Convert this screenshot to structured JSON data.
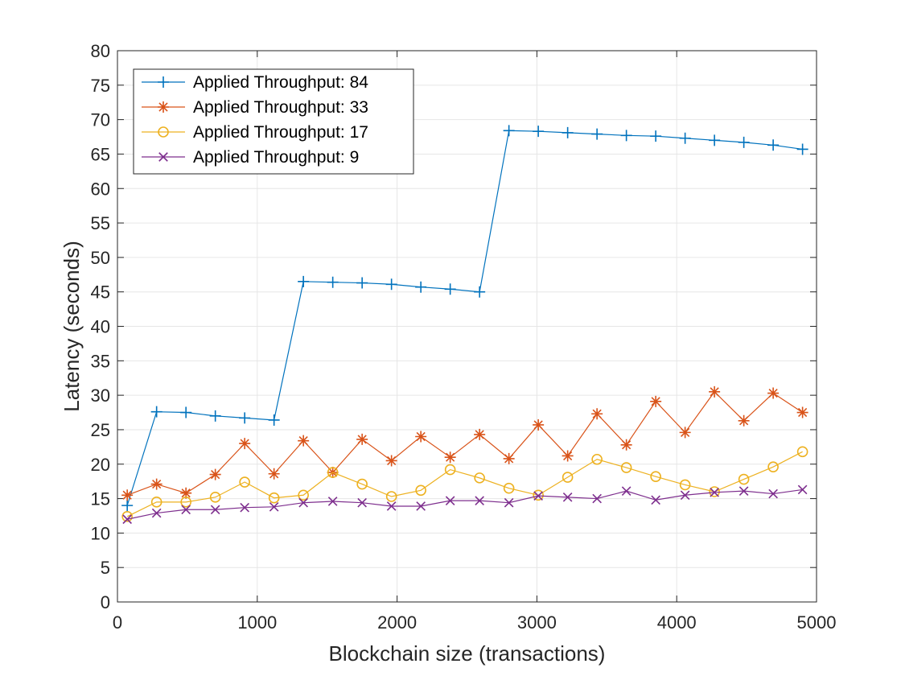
{
  "chart_data": {
    "type": "line",
    "xlabel": "Blockchain size (transactions)",
    "ylabel": "Latency (seconds)",
    "xlim": [
      0,
      5000
    ],
    "ylim": [
      0,
      80
    ],
    "xticks": [
      0,
      1000,
      2000,
      3000,
      4000,
      5000
    ],
    "yticks": [
      0,
      5,
      10,
      15,
      20,
      25,
      30,
      35,
      40,
      45,
      50,
      55,
      60,
      65,
      70,
      75,
      80
    ],
    "grid": true,
    "legend_position": "top-left",
    "x": [
      70,
      280,
      490,
      700,
      910,
      1120,
      1330,
      1540,
      1750,
      1960,
      2170,
      2380,
      2590,
      2800,
      3010,
      3220,
      3430,
      3640,
      3850,
      4060,
      4270,
      4480,
      4690,
      4900
    ],
    "series": [
      {
        "name": "Applied Throughput: 84",
        "color": "#0072bd",
        "marker": "plus",
        "values": [
          14.0,
          27.6,
          27.5,
          27.0,
          26.7,
          26.4,
          46.5,
          46.4,
          46.3,
          46.1,
          45.7,
          45.4,
          45.0,
          68.4,
          68.3,
          68.1,
          67.9,
          67.7,
          67.6,
          67.3,
          67.0,
          66.7,
          66.3,
          65.7
        ]
      },
      {
        "name": "Applied Throughput: 33",
        "color": "#d95319",
        "marker": "asterisk",
        "values": [
          15.5,
          17.1,
          15.8,
          18.5,
          23.0,
          18.6,
          23.4,
          18.8,
          23.6,
          20.5,
          24.0,
          21.0,
          24.3,
          20.8,
          25.7,
          21.2,
          27.3,
          22.8,
          29.1,
          24.6,
          30.5,
          26.3,
          30.3,
          27.5
        ]
      },
      {
        "name": "Applied Throughput: 17",
        "color": "#edb120",
        "marker": "circle",
        "values": [
          12.4,
          14.5,
          14.5,
          15.2,
          17.4,
          15.1,
          15.5,
          18.8,
          17.1,
          15.3,
          16.2,
          19.2,
          18.0,
          16.5,
          15.5,
          18.1,
          20.7,
          19.5,
          18.2,
          17.0,
          16.0,
          17.8,
          19.6,
          21.8
        ]
      },
      {
        "name": "Applied Throughput: 9",
        "color": "#7e2f8e",
        "marker": "x",
        "values": [
          12.0,
          12.9,
          13.4,
          13.4,
          13.7,
          13.8,
          14.4,
          14.6,
          14.4,
          13.9,
          13.9,
          14.7,
          14.7,
          14.4,
          15.4,
          15.2,
          15.0,
          16.1,
          14.8,
          15.5,
          15.9,
          16.1,
          15.7,
          16.3
        ]
      }
    ]
  }
}
